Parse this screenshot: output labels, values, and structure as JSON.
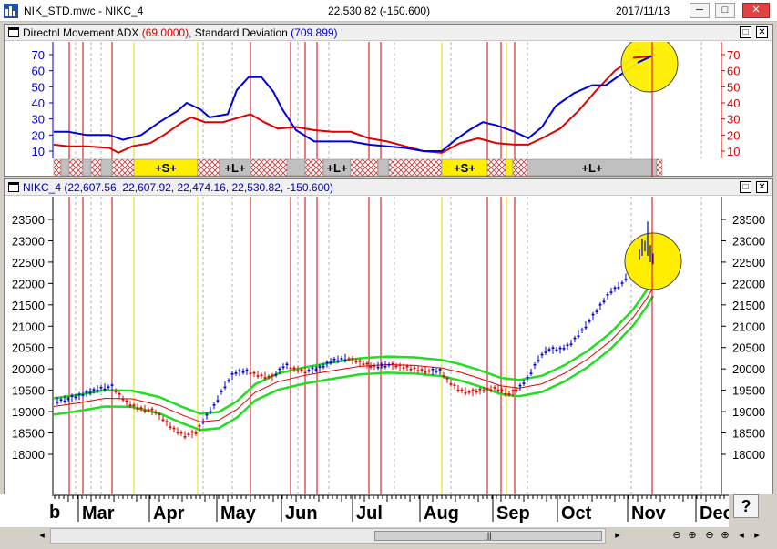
{
  "window": {
    "title": "NIK_STD.mwc - NIKC_4",
    "quote": "22,530.82 (-150.600)",
    "date": "2017/11/13",
    "minimize": "─",
    "maximize": "□",
    "close": "✕"
  },
  "adx_pane": {
    "title_prefix": "Directnl Movement ADX ",
    "adx_value": "(69.0000)",
    "title_mid": ", Standard Deviation ",
    "sd_value": "(709.899)",
    "maximize": "□",
    "close": "✕",
    "y_ticks": [
      "70",
      "60",
      "50",
      "40",
      "30",
      "20",
      "10"
    ],
    "colors": {
      "adx": "#e00000",
      "sd": "#0000dd"
    },
    "signal_labels": [
      "+S+",
      "+L+",
      "+L+",
      "+S+",
      "+L+"
    ]
  },
  "price_pane": {
    "title": "NIKC_4 (22,607.56, 22,607.92, 22,474.16, 22,530.82, -150.600)",
    "maximize": "□",
    "close": "✕",
    "y_ticks": [
      "23500",
      "23000",
      "22500",
      "22000",
      "21500",
      "21000",
      "20500",
      "20000",
      "19500",
      "19000",
      "18500",
      "18000"
    ],
    "colors": {
      "band": "#22dd22",
      "mid": "#e00000",
      "up_bar": "#0000cc",
      "down_bar": "#dd0000"
    }
  },
  "x_axis": {
    "months": [
      "Mar",
      "Apr",
      "May",
      "Jun",
      "Jul",
      "Aug",
      "Sep",
      "Oct",
      "Nov",
      "Dec"
    ],
    "first_partial": "b"
  },
  "controls": {
    "help": "?",
    "scroll_grip": "|||",
    "nav": [
      "◂",
      "▸",
      "⊖",
      "⊕",
      "⊖",
      "⊕",
      "◂",
      "▸"
    ]
  },
  "highlight_color": "#ffee00"
}
